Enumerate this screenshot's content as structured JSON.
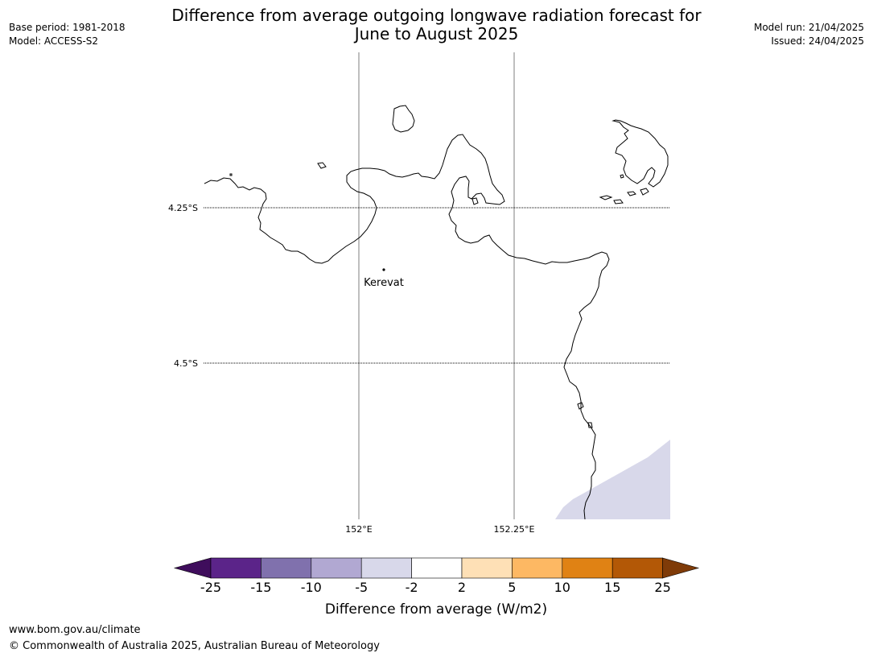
{
  "header": {
    "title_line1": "Difference from average outgoing longwave radiation forecast for",
    "title_line2": "June to August 2025",
    "base_period": "Base period: 1981-2018",
    "model": "Model: ACCESS-S2",
    "model_run": "Model run: 21/04/2025",
    "issued": "Issued: 24/04/2025"
  },
  "map": {
    "lat_labels": [
      "4.25°S",
      "4.5°S"
    ],
    "lon_labels": [
      "152°E",
      "152.25°E"
    ],
    "place": {
      "name": "Kerevat"
    },
    "coastline_color": "#000000",
    "shaded_category": "-5 to -2",
    "shaded_color": "#d8d8ea"
  },
  "colorbar": {
    "title": "Difference from average (W/m2)",
    "ticks": [
      "-25",
      "-15",
      "-10",
      "-5",
      "-2",
      "2",
      "5",
      "10",
      "15",
      "25"
    ],
    "colors": [
      "#3f0d5c",
      "#5b2489",
      "#8071ad",
      "#b1a8d2",
      "#d8d8ea",
      "#ffffff",
      "#fee0b6",
      "#fdb863",
      "#e08214",
      "#b35806",
      "#7f3b08"
    ]
  },
  "footer": {
    "url": "www.bom.gov.au/climate",
    "copyright": "© Commonwealth of Australia 2025, Australian Bureau of Meteorology"
  }
}
